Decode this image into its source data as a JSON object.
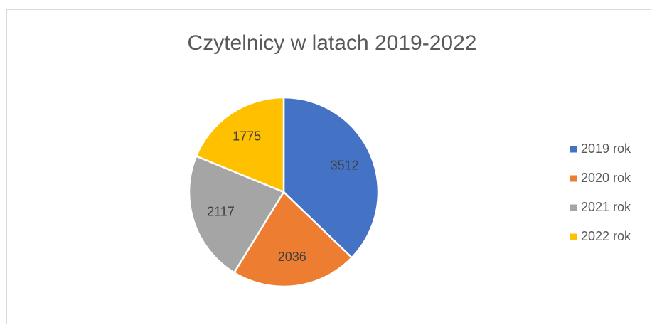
{
  "chart_data": {
    "type": "pie",
    "title": "Czytelnicy w latach 2019-2022",
    "categories": [
      "2019 rok",
      "2020 rok",
      "2021 rok",
      "2022 rok"
    ],
    "values": [
      3512,
      2036,
      2117,
      1775
    ],
    "colors": [
      "#4472c4",
      "#ed7d31",
      "#a5a5a5",
      "#ffc000"
    ],
    "legend": "right"
  }
}
